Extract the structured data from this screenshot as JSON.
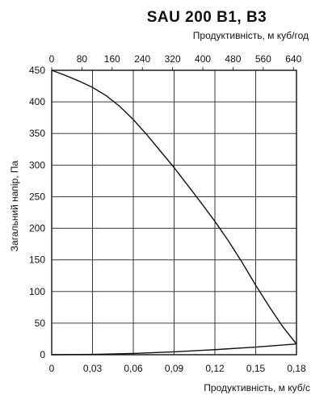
{
  "chart_data": {
    "type": "line",
    "title": "SAU 200 B1, B3",
    "top_axis": {
      "label": "Продуктивність, м куб/год",
      "ticks": [
        "0",
        "80",
        "160",
        "240",
        "320",
        "400",
        "480",
        "560",
        "640"
      ],
      "range": [
        0,
        648
      ]
    },
    "x_axis": {
      "label": "Продуктивність, м куб/с",
      "ticks": [
        "0",
        "0,03",
        "0,06",
        "0,09",
        "0,12",
        "0,15",
        "0,18"
      ],
      "range": [
        0,
        0.18
      ]
    },
    "y_axis": {
      "label": "Загальний напір, Па",
      "ticks": [
        "0",
        "50",
        "100",
        "150",
        "200",
        "250",
        "300",
        "350",
        "400",
        "450"
      ],
      "range": [
        0,
        450
      ]
    },
    "grid": true,
    "series": [
      {
        "x": [
          0,
          0.01,
          0.02,
          0.03,
          0.04,
          0.05,
          0.06,
          0.07,
          0.08,
          0.09,
          0.1,
          0.11,
          0.12,
          0.13,
          0.14,
          0.15,
          0.16,
          0.17,
          0.18
        ],
        "y": [
          450,
          442,
          433,
          423,
          410,
          393,
          372,
          348,
          322,
          296,
          268,
          240,
          211,
          180,
          146,
          110,
          76,
          44,
          17
        ]
      },
      {
        "x": [
          0,
          0.03,
          0.06,
          0.09,
          0.12,
          0.15,
          0.18
        ],
        "y": [
          0,
          0.5,
          2,
          4.5,
          8,
          12,
          17
        ]
      }
    ]
  }
}
